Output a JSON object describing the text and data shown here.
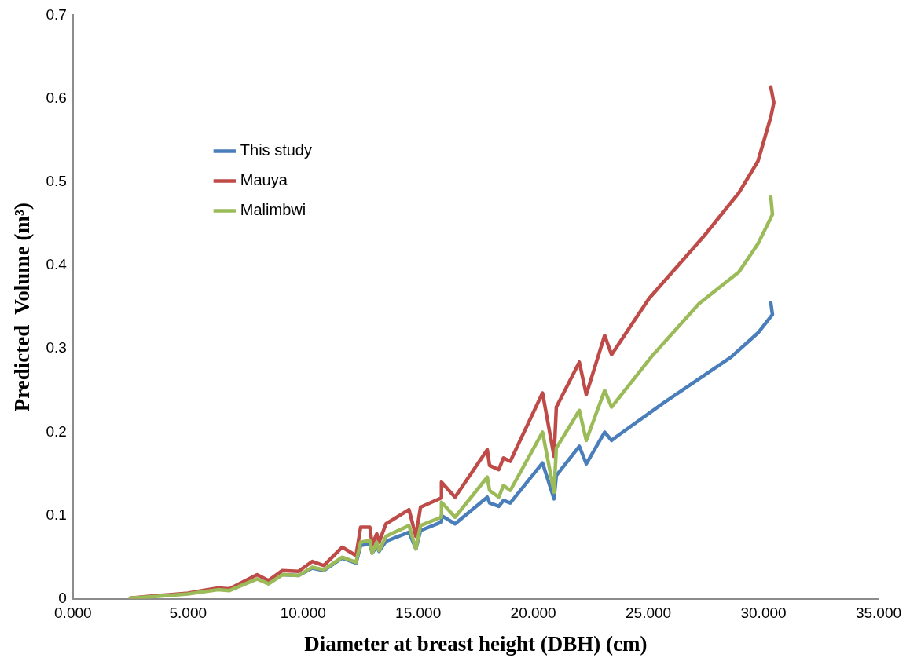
{
  "chart_data": {
    "type": "line",
    "xlabel": "Diameter at breast height (DBH) (cm)",
    "ylabel": "Predicted  Volume (m³)",
    "xlim": [
      0,
      35
    ],
    "xticks": [
      {
        "value": 0,
        "label": "0.000"
      },
      {
        "value": 5,
        "label": "5.000"
      },
      {
        "value": 10,
        "label": "10.000"
      },
      {
        "value": 15,
        "label": "15.000"
      },
      {
        "value": 20,
        "label": "20.000"
      },
      {
        "value": 25,
        "label": "25.000"
      },
      {
        "value": 30,
        "label": "30.000"
      },
      {
        "value": 35,
        "label": "35.000"
      }
    ],
    "ylim": [
      0,
      0.7
    ],
    "yticks": [
      0,
      0.1,
      0.2,
      0.3,
      0.4,
      0.5,
      0.6,
      0.7
    ],
    "grid": false,
    "legend": "top left",
    "marker": "none",
    "line_style": "solid",
    "series": [
      {
        "name": "This study",
        "color": "#4a7ebb",
        "x": [
          9.1,
          9.8,
          10.4,
          10.9,
          11.7,
          12.3,
          12.5,
          12.9,
          13,
          13.2,
          13.3,
          13.6,
          14.6,
          14.9,
          15.1,
          16,
          16.01,
          16.6,
          18,
          18.1,
          18.5,
          18.7,
          19,
          20.4,
          20.9,
          21,
          22,
          22.3,
          23.1,
          23.4,
          23.63,
          25.71,
          28.59,
          29.76,
          30.39,
          30.32
        ],
        "values": [
          0.029,
          0.028,
          0.037,
          0.034,
          0.049,
          0.043,
          0.064,
          0.066,
          0.055,
          0.063,
          0.057,
          0.069,
          0.08,
          0.06,
          0.082,
          0.092,
          0.1,
          0.09,
          0.122,
          0.115,
          0.111,
          0.118,
          0.115,
          0.163,
          0.12,
          0.148,
          0.183,
          0.162,
          0.2,
          0.19,
          0.195,
          0.236,
          0.29,
          0.319,
          0.341,
          0.355
        ]
      },
      {
        "name": "Mauya",
        "color": "#be4b48",
        "x": [
          2.5,
          3.7,
          4.2,
          5,
          6.3,
          6.8,
          8,
          8.5,
          9.1,
          9.8,
          10.4,
          10.9,
          11.7,
          12.3,
          12.5,
          12.9,
          13,
          13.2,
          13.3,
          13.6,
          14.6,
          14.9,
          15.1,
          16,
          16.01,
          16.6,
          18,
          18.1,
          18.5,
          18.7,
          19,
          20.4,
          20.9,
          21,
          22,
          22.3,
          23.1,
          23.4,
          25.02,
          27.44,
          28.93,
          29.76,
          30.32,
          30.45,
          30.32
        ],
        "values": [
          0.001,
          0.004,
          0.005,
          0.007,
          0.013,
          0.012,
          0.029,
          0.022,
          0.034,
          0.033,
          0.045,
          0.04,
          0.062,
          0.052,
          0.086,
          0.086,
          0.065,
          0.078,
          0.068,
          0.09,
          0.107,
          0.075,
          0.11,
          0.121,
          0.14,
          0.122,
          0.179,
          0.16,
          0.155,
          0.169,
          0.165,
          0.247,
          0.171,
          0.23,
          0.284,
          0.245,
          0.316,
          0.293,
          0.36,
          0.436,
          0.487,
          0.525,
          0.578,
          0.595,
          0.614
        ]
      },
      {
        "name": "Malimbwi",
        "color": "#9bbb59",
        "x": [
          2.5,
          3.7,
          5,
          6.3,
          6.8,
          8,
          8.5,
          9.1,
          9.8,
          10.4,
          10.9,
          11.7,
          12.3,
          12.5,
          12.9,
          13,
          13.2,
          13.3,
          13.6,
          14.6,
          14.9,
          15.1,
          16,
          16.01,
          16.6,
          18,
          18.1,
          18.5,
          18.7,
          19,
          20.4,
          20.9,
          21,
          22,
          22.3,
          23.1,
          23.4,
          25.12,
          27.2,
          28.93,
          29.76,
          30.39,
          30.32
        ],
        "values": [
          0.001,
          0.003,
          0.006,
          0.011,
          0.01,
          0.024,
          0.018,
          0.029,
          0.028,
          0.038,
          0.035,
          0.05,
          0.044,
          0.068,
          0.07,
          0.055,
          0.068,
          0.058,
          0.075,
          0.088,
          0.06,
          0.088,
          0.098,
          0.116,
          0.098,
          0.146,
          0.13,
          0.122,
          0.136,
          0.13,
          0.2,
          0.128,
          0.181,
          0.226,
          0.19,
          0.25,
          0.23,
          0.29,
          0.354,
          0.392,
          0.426,
          0.461,
          0.482
        ]
      }
    ]
  }
}
